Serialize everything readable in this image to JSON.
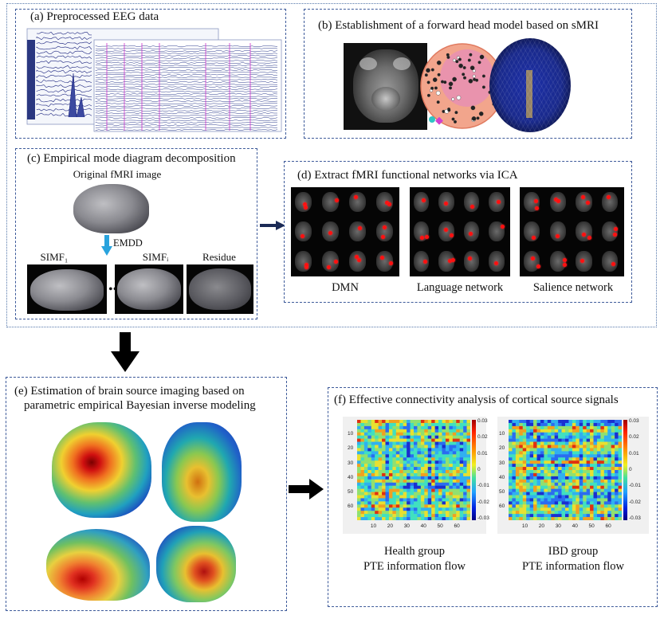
{
  "panels": {
    "a": {
      "title": "(a) Preprocessed EEG data"
    },
    "b": {
      "title": "(b) Establishment of a forward head model based on sMRI"
    },
    "c": {
      "title": "(c) Empirical mode diagram decomposition",
      "original_label": "Original fMRI image",
      "method_label": "EMDD",
      "simf1_label": "SIMF₁",
      "dots_label": "•••",
      "simfi_label": "SIMFᵢ",
      "residue_label": "Residue"
    },
    "d": {
      "title": "(d) Extract fMRI functional networks via ICA",
      "networks": [
        "DMN",
        "Language network",
        "Salience network"
      ]
    },
    "e": {
      "title_line1": "(e) Estimation of brain source imaging based on",
      "title_line2": "parametric empirical Bayesian inverse modeling"
    },
    "f": {
      "title": "(f) Effective connectivity analysis of cortical source signals",
      "left_caption_line1": "Health group",
      "left_caption_line2": "PTE information flow",
      "right_caption_line1": "IBD group",
      "right_caption_line2": "PTE information flow",
      "left_y_ticks": [
        "10",
        "20",
        "30",
        "40",
        "50",
        "60"
      ],
      "right_y_ticks": [
        "10",
        "20",
        "30",
        "40",
        "50",
        "60"
      ],
      "left_x_ticks": [
        "10",
        "20",
        "30",
        "40",
        "50",
        "60"
      ],
      "right_x_ticks": [
        "10",
        "20",
        "30",
        "40",
        "50",
        "60"
      ],
      "left_colorbar_ticks": [
        "0.03",
        "0.02",
        "0.01",
        "0",
        "-0.01",
        "-0.02",
        "-0.03"
      ],
      "right_colorbar_ticks": [
        "0.03",
        "0.02",
        "0.01",
        "0",
        "-0.01",
        "-0.02",
        "-0.03"
      ]
    }
  },
  "colors": {
    "panel_border": "#3d5a9a",
    "arrow": "#111111",
    "emdd_arrow": "#29a3dd",
    "eeg_trace": "#1a237e",
    "eeg_marker": "#cc33cc"
  }
}
